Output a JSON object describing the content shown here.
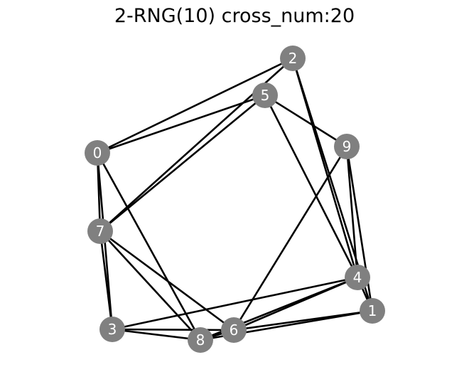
{
  "title": "2-RNG(10) cross_num:20",
  "colors": {
    "node_fill": "#808080",
    "node_label": "#ffffff",
    "edge": "#000000",
    "background": "#ffffff"
  },
  "graph": {
    "nodes": [
      {
        "id": "0",
        "label": "0"
      },
      {
        "id": "1",
        "label": "1"
      },
      {
        "id": "2",
        "label": "2"
      },
      {
        "id": "3",
        "label": "3"
      },
      {
        "id": "4",
        "label": "4"
      },
      {
        "id": "5",
        "label": "5"
      },
      {
        "id": "6",
        "label": "6"
      },
      {
        "id": "7",
        "label": "7"
      },
      {
        "id": "8",
        "label": "8"
      },
      {
        "id": "9",
        "label": "9"
      }
    ],
    "edges": [
      [
        "0",
        "2"
      ],
      [
        "0",
        "5"
      ],
      [
        "0",
        "7"
      ],
      [
        "0",
        "3"
      ],
      [
        "0",
        "8"
      ],
      [
        "2",
        "7"
      ],
      [
        "2",
        "4"
      ],
      [
        "2",
        "1"
      ],
      [
        "5",
        "7"
      ],
      [
        "5",
        "9"
      ],
      [
        "5",
        "4"
      ],
      [
        "9",
        "4"
      ],
      [
        "9",
        "1"
      ],
      [
        "9",
        "6"
      ],
      [
        "7",
        "3"
      ],
      [
        "7",
        "8"
      ],
      [
        "7",
        "6"
      ],
      [
        "4",
        "3"
      ],
      [
        "4",
        "6"
      ],
      [
        "4",
        "8"
      ],
      [
        "4",
        "1"
      ],
      [
        "1",
        "6"
      ],
      [
        "1",
        "8"
      ],
      [
        "3",
        "8"
      ],
      [
        "3",
        "6"
      ],
      [
        "8",
        "6"
      ]
    ]
  }
}
